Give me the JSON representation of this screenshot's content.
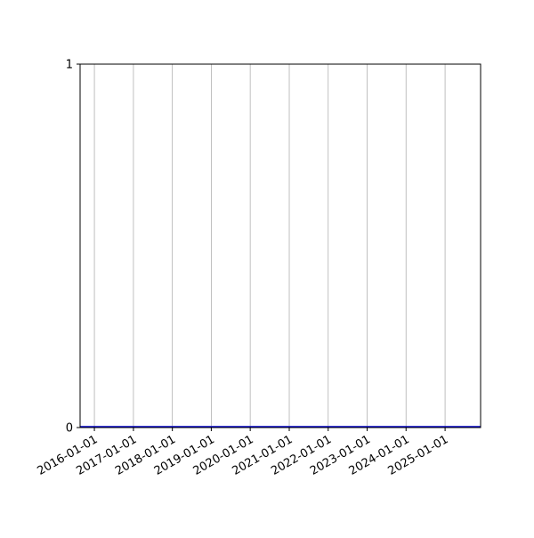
{
  "chart_data": {
    "type": "line",
    "title": "",
    "xlabel": "",
    "ylabel": "",
    "x_type": "date",
    "xlim": [
      "2015-08-20",
      "2025-11-30"
    ],
    "ylim": [
      0,
      1
    ],
    "x_ticks": [
      "2016-01-01",
      "2017-01-01",
      "2018-01-01",
      "2019-01-01",
      "2020-01-01",
      "2021-01-01",
      "2022-01-01",
      "2023-01-01",
      "2024-01-01",
      "2025-01-01"
    ],
    "y_ticks": [
      "0",
      "1"
    ],
    "grid": {
      "x": true,
      "y": false
    },
    "series": [
      {
        "x": [
          "2015-08-20",
          "2025-11-30"
        ],
        "y": [
          0,
          0
        ],
        "color": "#0000cc"
      }
    ],
    "grid_color": "#b0b0b0"
  }
}
